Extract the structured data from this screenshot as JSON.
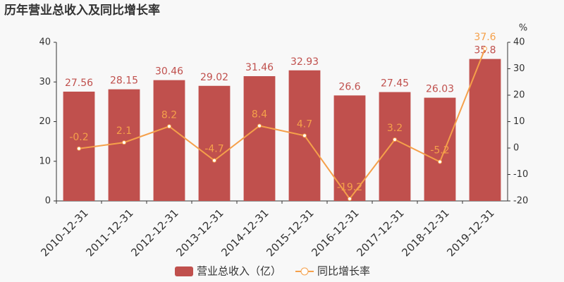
{
  "chart_data": {
    "type": "bar",
    "title": "历年营业总收入及同比增长率",
    "y2_unit": "%",
    "categories": [
      "2010-12-31",
      "2011-12-31",
      "2012-12-31",
      "2013-12-31",
      "2014-12-31",
      "2015-12-31",
      "2016-12-31",
      "2017-12-31",
      "2018-12-31",
      "2019-12-31"
    ],
    "series": [
      {
        "name": "营业总收入（亿）",
        "color": "#c0504d",
        "type": "bar",
        "values": [
          27.56,
          28.15,
          30.46,
          29.02,
          31.46,
          32.93,
          26.6,
          27.45,
          26.03,
          35.8
        ]
      },
      {
        "name": "同比增长率",
        "color": "#f5a04a",
        "type": "line",
        "axis": "y2",
        "values": [
          -0.2,
          2.1,
          8.2,
          -4.7,
          8.4,
          4.7,
          -19.2,
          3.2,
          -5.2,
          37.6
        ]
      }
    ],
    "ylim": [
      0,
      40
    ],
    "yticks": [
      0,
      10,
      20,
      30,
      40
    ],
    "y2lim": [
      -20,
      40
    ],
    "y2ticks": [
      -20,
      -10,
      0,
      10,
      20,
      30,
      40
    ],
    "grid": false,
    "legend": "bottom"
  }
}
